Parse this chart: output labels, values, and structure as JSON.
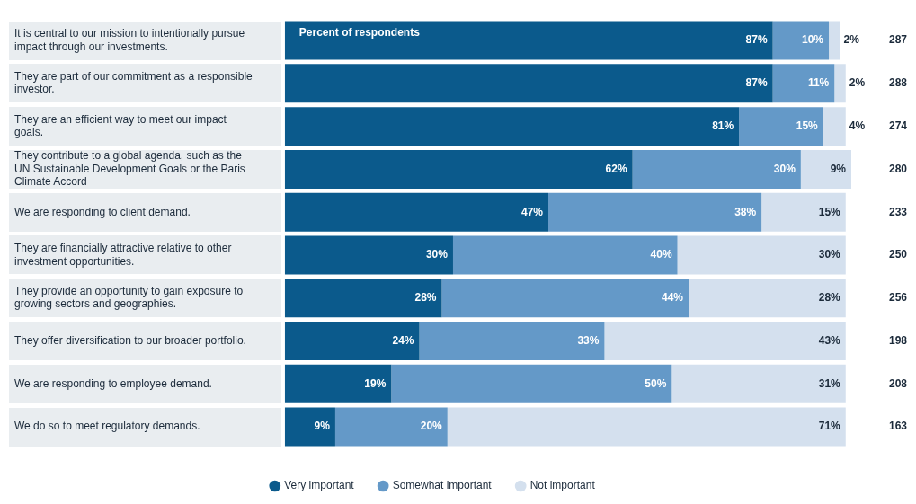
{
  "chart_data": {
    "type": "bar",
    "orientation": "horizontal",
    "stacked": true,
    "legend": "bottom",
    "tick_labels": "y",
    "grid": false,
    "categories": [
      "It is central to our mission to intentionally pursue impact through our investments.",
      "They are part of our commitment as a responsible investor.",
      "They are an efficient way to meet our impact goals.",
      "They contribute to a global agenda, such as the UN Sustainable Development Goals or the Paris Climate Accord",
      "We are responding to client demand.",
      "They are financially attractive relative to other investment opportunities.",
      "They provide an opportunity to gain exposure to growing sectors and geographies.",
      "They offer diversification to our broader portfolio.",
      "We are responding to employee demand.",
      "We do so to meet regulatory demands."
    ],
    "series": [
      {
        "name": "Very important",
        "color": "#0b5a8c",
        "values": [
          87,
          87,
          81,
          62,
          47,
          30,
          28,
          24,
          19,
          9
        ],
        "value_labels": [
          "87%",
          "87%",
          "81%",
          "62%",
          "47%",
          "30%",
          "28%",
          "24%",
          "19%",
          "9%"
        ]
      },
      {
        "name": "Somewhat important",
        "color": "#6499c8",
        "values": [
          10,
          11,
          15,
          30,
          38,
          40,
          44,
          33,
          50,
          20
        ],
        "value_labels": [
          "10%",
          "11%",
          "15%",
          "30%",
          "38%",
          "40%",
          "44%",
          "33%",
          "50%",
          "20%"
        ]
      },
      {
        "name": "Not important",
        "color": "#d4e0ee",
        "values": [
          2,
          2,
          4,
          9,
          15,
          30,
          28,
          43,
          31,
          71
        ],
        "value_labels": [
          "2%",
          "2%",
          "4%",
          "9%",
          "15%",
          "30%",
          "28%",
          "43%",
          "31%",
          "71%"
        ]
      }
    ],
    "annotations": [
      "Percent of respondents",
      "287",
      "288",
      "274",
      "280",
      "233",
      "250",
      "256",
      "198",
      "208",
      "163"
    ]
  }
}
